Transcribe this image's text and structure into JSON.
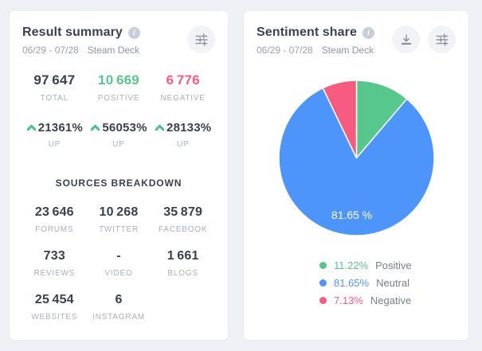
{
  "icons": {
    "info": "i"
  },
  "left_card": {
    "title": "Result summary",
    "date_range": "06/29 - 07/28",
    "keyword": "Steam Deck",
    "stats": [
      {
        "value": "97 647",
        "label": "TOTAL",
        "tone": "t-dark"
      },
      {
        "value": "10 669",
        "label": "POSITIVE",
        "tone": "t-positive"
      },
      {
        "value": "6 776",
        "label": "NEGATIVE",
        "tone": "t-negative"
      }
    ],
    "trends": [
      {
        "value": "21361%",
        "label": "UP"
      },
      {
        "value": "56053%",
        "label": "UP"
      },
      {
        "value": "28133%",
        "label": "UP"
      }
    ],
    "sources_title": "SOURCES BREAKDOWN",
    "sources": [
      {
        "value": "23 646",
        "label": "FORUMS"
      },
      {
        "value": "10 268",
        "label": "TWITTER"
      },
      {
        "value": "35 879",
        "label": "FACEBOOK"
      },
      {
        "value": "733",
        "label": "REVIEWS"
      },
      {
        "value": "-",
        "label": "VIDEO"
      },
      {
        "value": "1 661",
        "label": "BLOGS"
      },
      {
        "value": "25 454",
        "label": "WEBSITES"
      },
      {
        "value": "6",
        "label": "INSTAGRAM"
      }
    ]
  },
  "right_card": {
    "title": "Sentiment share",
    "date_range": "06/29 - 07/28",
    "keyword": "Steam Deck"
  },
  "chart_data": {
    "type": "pie",
    "title": "Sentiment share",
    "start_angle_deg": 0,
    "direction": "clockwise",
    "slices": [
      {
        "name": "Positive",
        "value": 11.22,
        "pct_label": "11.22%",
        "color": "#57c78d"
      },
      {
        "name": "Neutral",
        "value": 81.65,
        "pct_label": "81.65%",
        "color": "#4e95fb"
      },
      {
        "name": "Negative",
        "value": 7.13,
        "pct_label": "7.13%",
        "color": "#f75c80"
      }
    ],
    "center_label": "81.65 %",
    "legend_position": "bottom-left"
  },
  "colors": {
    "positive": "#57c78d",
    "neutral": "#4e95fb",
    "negative": "#f75c80",
    "page_bg": "#eff1f6"
  }
}
